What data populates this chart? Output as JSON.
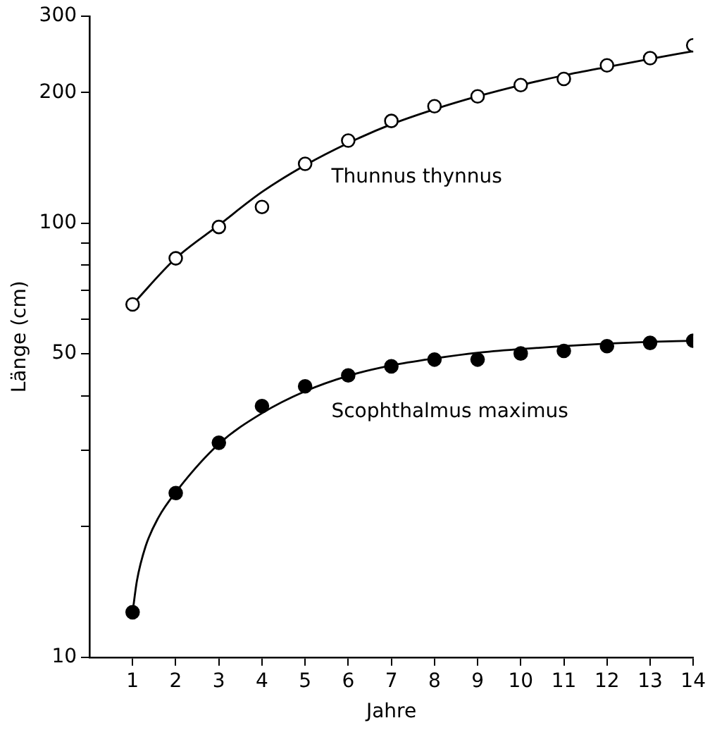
{
  "chart_data": {
    "type": "scatter",
    "xlabel": "Jahre",
    "ylabel": "Länge (cm)",
    "log": "y",
    "grid": false,
    "legend": false,
    "marker": "circle",
    "xlim": [
      0,
      14
    ],
    "xticks": [
      1,
      2,
      3,
      4,
      5,
      6,
      7,
      8,
      9,
      10,
      11,
      12,
      13,
      14
    ],
    "ylim": [
      10,
      300
    ],
    "yticks": [
      10,
      {
        "value": 20,
        "label": null
      },
      {
        "value": 30,
        "label": null
      },
      {
        "value": 40,
        "label": null
      },
      50,
      {
        "value": 60,
        "label": null
      },
      {
        "value": 70,
        "label": null
      },
      {
        "value": 80,
        "label": null
      },
      {
        "value": 90,
        "label": null
      },
      100,
      200,
      300
    ],
    "series": [
      {
        "name": "Thunnus thynnus",
        "color": "#ffffff",
        "x": [
          1,
          2,
          3,
          4,
          5,
          6,
          7,
          8,
          9,
          10,
          11,
          12,
          13,
          14
        ],
        "values": [
          65,
          83,
          98,
          109,
          137,
          155,
          172,
          186,
          196,
          208,
          215,
          231,
          240,
          257
        ]
      },
      {
        "name": "Scophthalmus maximus",
        "color": "#000000",
        "x": [
          1,
          2,
          3,
          4,
          5,
          6,
          7,
          8,
          9,
          10,
          11,
          12,
          13,
          14
        ],
        "values": [
          12.7,
          23.9,
          31.2,
          37.9,
          42.1,
          44.6,
          46.8,
          48.5,
          48.5,
          50.1,
          50.8,
          52.1,
          53.0,
          53.6
        ]
      },
      {
        "type": "line",
        "marker": "none",
        "line_style": "solid",
        "color": "#000000",
        "x": [
          1,
          2,
          3,
          4,
          5,
          6,
          7,
          8,
          9,
          10,
          11,
          12,
          13,
          14
        ],
        "values": [
          65,
          83,
          99,
          118,
          136,
          153,
          169,
          183,
          196,
          208,
          219,
          229,
          239,
          249
        ]
      },
      {
        "type": "line",
        "marker": "none",
        "line_style": "solid",
        "color": "#000000",
        "x": [
          1,
          1.1,
          1.3,
          1.6,
          2,
          3,
          4,
          5,
          6,
          7,
          8,
          9,
          10,
          11,
          12,
          13,
          14
        ],
        "values": [
          12.7,
          15,
          18,
          21,
          24,
          31,
          36.5,
          41,
          44.5,
          47,
          48.8,
          50.3,
          51.3,
          52.1,
          52.8,
          53.3,
          53.6
        ]
      }
    ]
  }
}
